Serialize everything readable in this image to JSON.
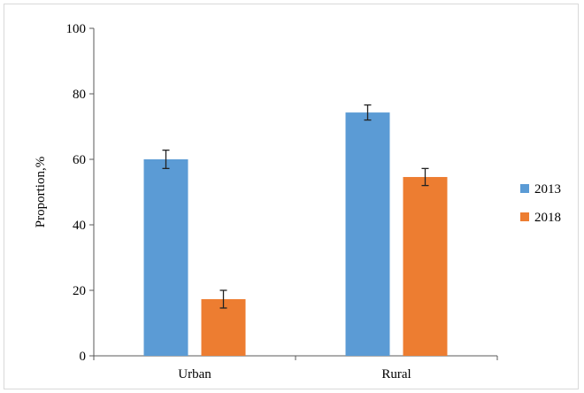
{
  "chart_data": {
    "type": "bar",
    "title": "",
    "xlabel": "",
    "ylabel": "Proportion,%",
    "categories": [
      "Urban",
      "Rural"
    ],
    "series": [
      {
        "name": "2013",
        "color": "#5b9bd5",
        "values": [
          60.0,
          74.3
        ],
        "errors": [
          2.8,
          2.3
        ]
      },
      {
        "name": "2018",
        "color": "#ed7d31",
        "values": [
          17.3,
          54.6
        ],
        "errors": [
          2.7,
          2.6
        ]
      }
    ],
    "ylim": [
      0,
      100
    ],
    "yticks": [
      0,
      20,
      40,
      60,
      80,
      100
    ],
    "grid": false,
    "legend_position": "right"
  }
}
